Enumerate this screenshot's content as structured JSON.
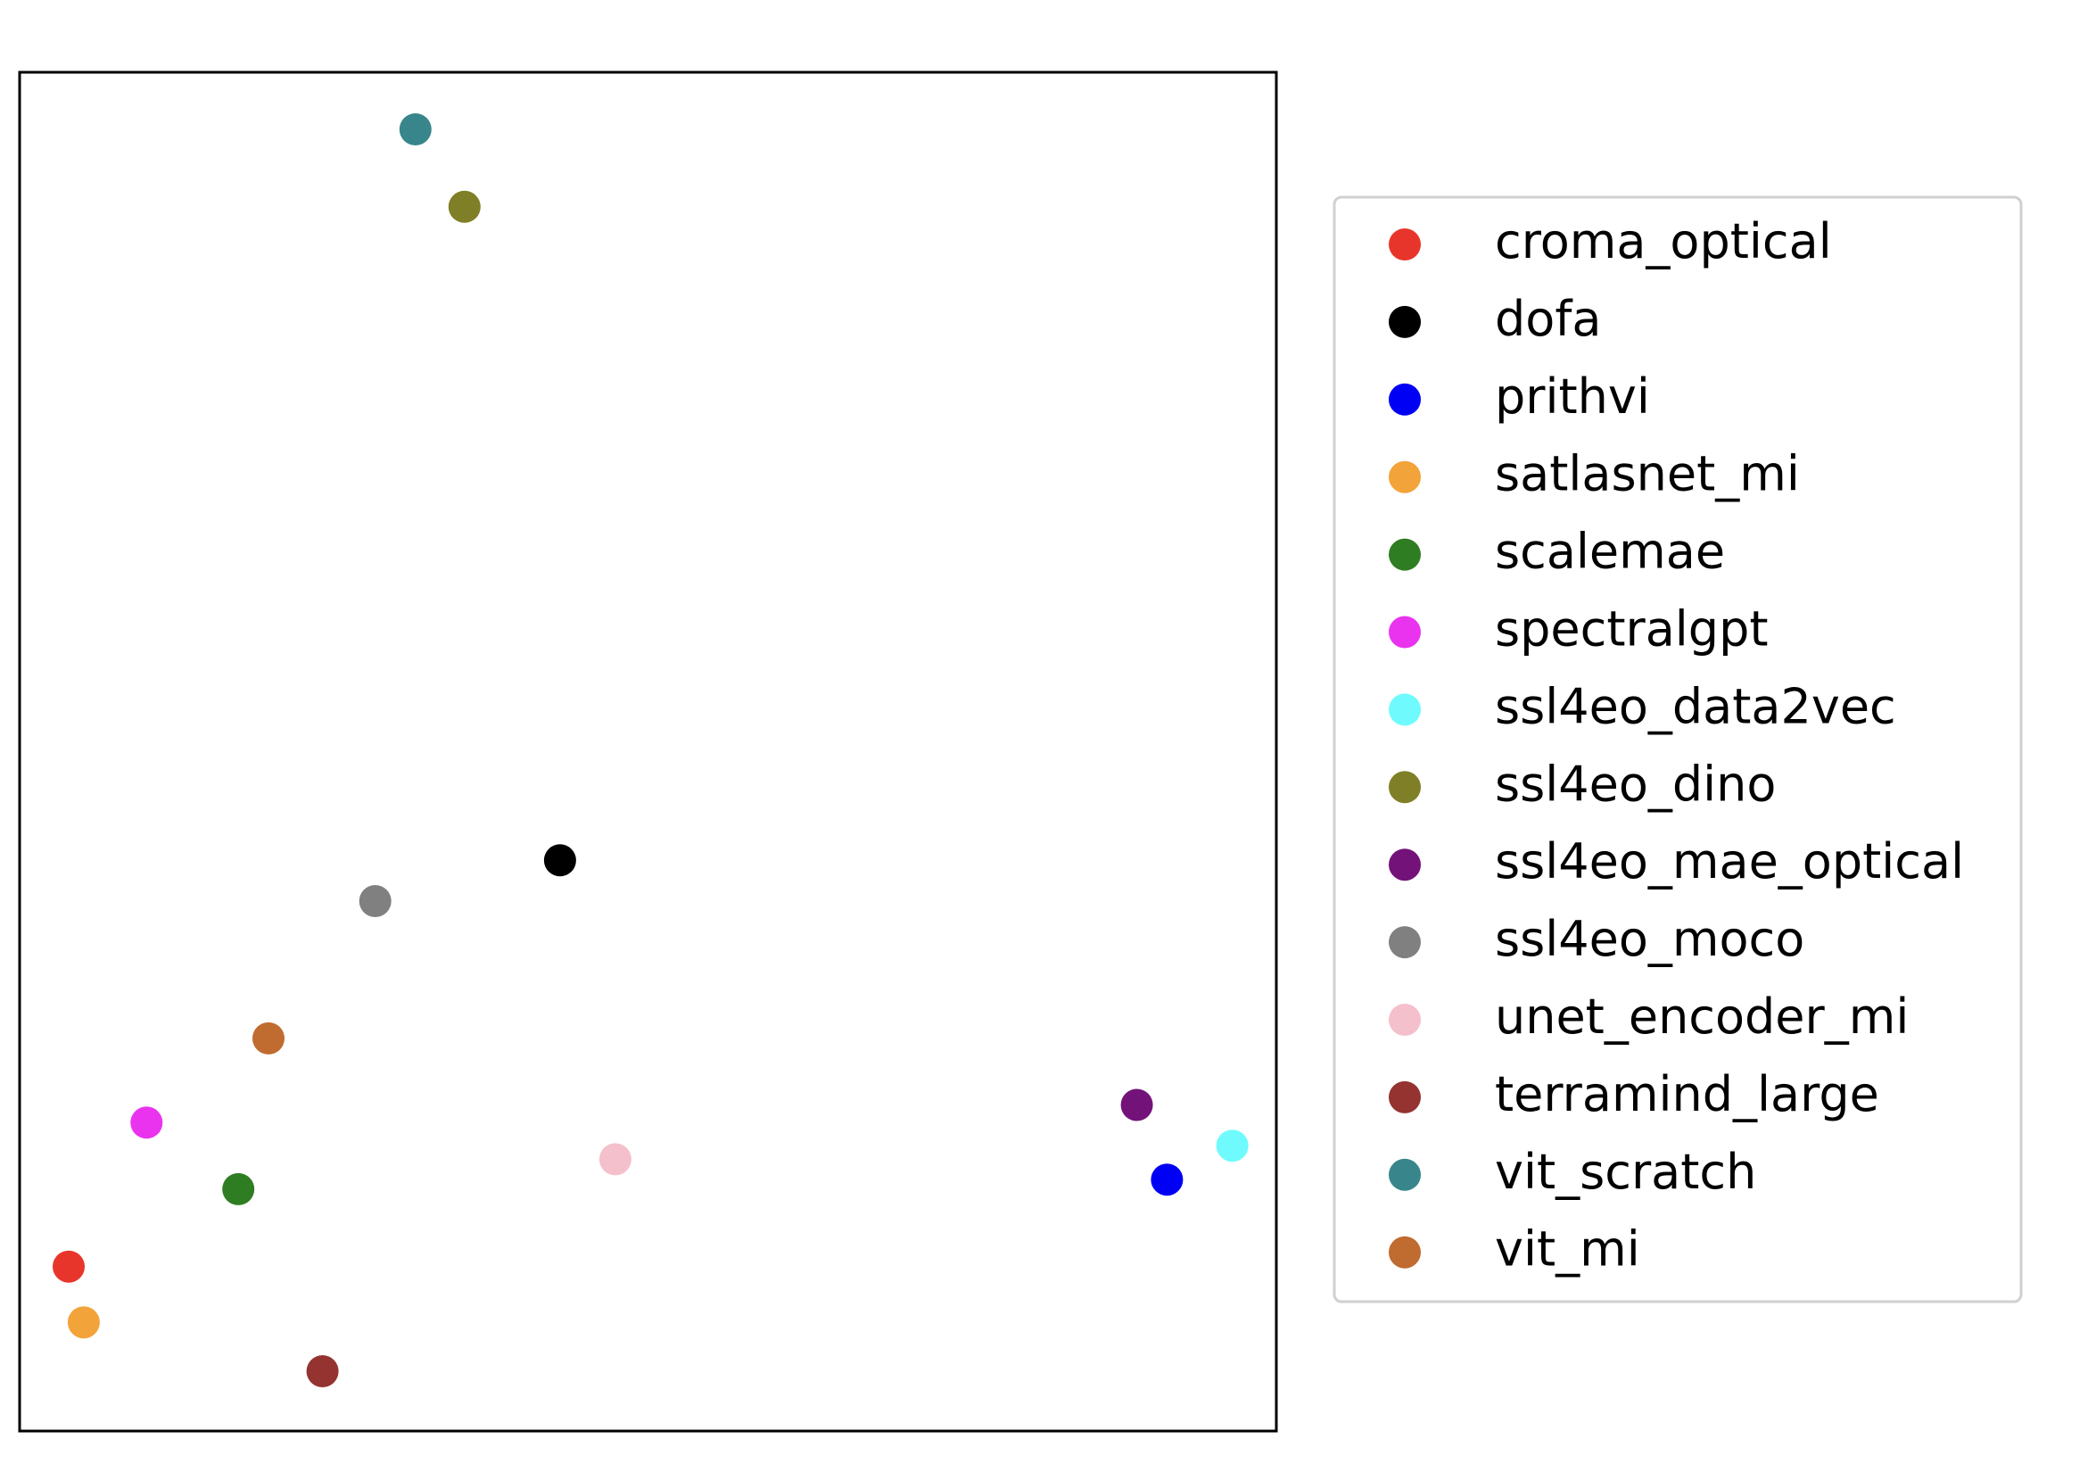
{
  "chart_data": {
    "type": "scatter",
    "title": "",
    "xlabel": "",
    "ylabel": "",
    "xlim": [
      0,
      1
    ],
    "ylim": [
      0,
      1
    ],
    "show_ticks": false,
    "grid": false,
    "legend_position": "right",
    "series": [
      {
        "name": "croma_optical",
        "color": "#e8352b",
        "x": 0.039,
        "y": 0.121
      },
      {
        "name": "dofa",
        "color": "#000000",
        "x": 0.43,
        "y": 0.42
      },
      {
        "name": "prithvi",
        "color": "#0000f5",
        "x": 0.913,
        "y": 0.185
      },
      {
        "name": "satlasnet_mi",
        "color": "#f2a33a",
        "x": 0.051,
        "y": 0.08
      },
      {
        "name": "scalemae",
        "color": "#2f7d22",
        "x": 0.174,
        "y": 0.178
      },
      {
        "name": "spectralgpt",
        "color": "#ea33ef",
        "x": 0.101,
        "y": 0.227
      },
      {
        "name": "ssl4eo_data2vec",
        "color": "#6ffbfd",
        "x": 0.965,
        "y": 0.21
      },
      {
        "name": "ssl4eo_dino",
        "color": "#7f7f27",
        "x": 0.354,
        "y": 0.901
      },
      {
        "name": "ssl4eo_mae_optical",
        "color": "#73137a",
        "x": 0.889,
        "y": 0.24
      },
      {
        "name": "ssl4eo_moco",
        "color": "#808080",
        "x": 0.283,
        "y": 0.39
      },
      {
        "name": "unet_encoder_mi",
        "color": "#f4c0cb",
        "x": 0.474,
        "y": 0.2
      },
      {
        "name": "terramind_large",
        "color": "#943330",
        "x": 0.241,
        "y": 0.044
      },
      {
        "name": "vit_scratch",
        "color": "#38868b",
        "x": 0.315,
        "y": 0.958
      },
      {
        "name": "vit_mi",
        "color": "#c06b30",
        "x": 0.198,
        "y": 0.289
      }
    ]
  }
}
